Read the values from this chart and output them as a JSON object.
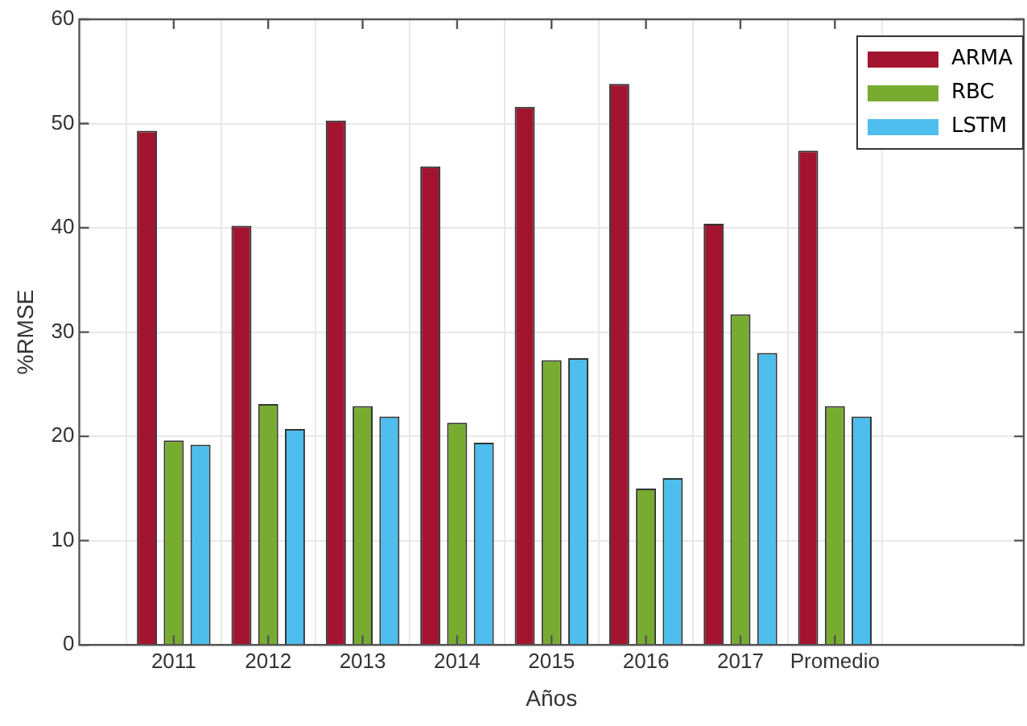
{
  "chart_data": {
    "type": "bar",
    "xlabel": "Años",
    "ylabel": "%RMSE",
    "categories": [
      "2011",
      "2012",
      "2013",
      "2014",
      "2015",
      "2016",
      "2017",
      "Promedio"
    ],
    "series": [
      {
        "name": "ARMA",
        "color": "#a2142f",
        "values": [
          49.3,
          40.2,
          50.3,
          45.9,
          51.6,
          53.8,
          40.4,
          47.4
        ]
      },
      {
        "name": "RBC",
        "color": "#77ac30",
        "values": [
          19.6,
          23.1,
          22.9,
          21.3,
          27.3,
          15.0,
          31.7,
          22.9
        ]
      },
      {
        "name": "LSTM",
        "color": "#4dbeee",
        "values": [
          19.2,
          20.7,
          21.9,
          19.4,
          27.5,
          16.0,
          28.0,
          21.9
        ]
      }
    ],
    "ylim": [
      0,
      60
    ],
    "yticks": [
      0,
      10,
      20,
      30,
      40,
      50,
      60
    ],
    "grid": true,
    "legend": "top right"
  }
}
